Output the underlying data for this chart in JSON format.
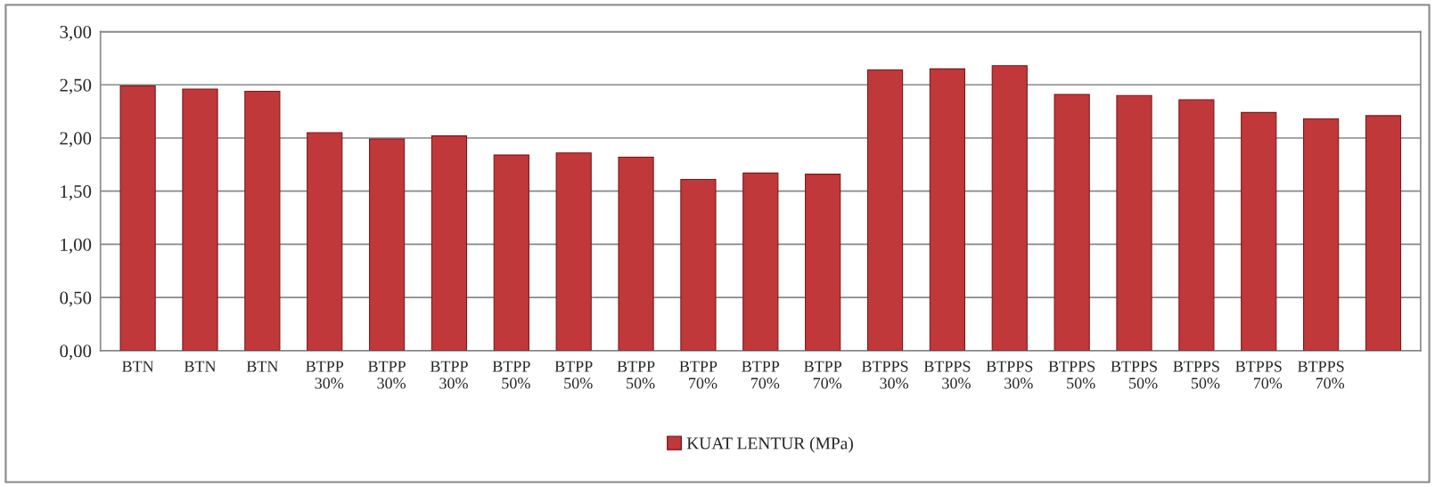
{
  "chart_data": {
    "type": "bar",
    "categories": [
      "BTN",
      "BTN",
      "BTN",
      "BTPP\n30%",
      "BTPP\n30%",
      "BTPP\n30%",
      "BTPP\n50%",
      "BTPP\n50%",
      "BTPP\n50%",
      "BTPP\n70%",
      "BTPP\n70%",
      "BTPP\n70%",
      "BTPPS\n30%",
      "BTPPS\n30%",
      "BTPPS\n30%",
      "BTPPS\n50%",
      "BTPPS\n50%",
      "BTPPS\n50%",
      "BTPPS\n70%",
      "BTPPS\n70%",
      null
    ],
    "series": [
      {
        "name": "KUAT LENTUR (MPa)",
        "color": "#c0383a",
        "values": [
          2.49,
          2.46,
          2.44,
          2.05,
          1.99,
          2.02,
          1.84,
          1.86,
          1.82,
          1.61,
          1.67,
          1.66,
          2.64,
          2.65,
          2.68,
          2.41,
          2.4,
          2.36,
          2.24,
          2.18,
          2.21
        ]
      }
    ],
    "ylim": [
      0,
      3
    ],
    "yticks": [
      {
        "value": 0,
        "label": "0,00"
      },
      {
        "value": 0.5,
        "label": "0,50"
      },
      {
        "value": 1,
        "label": "1,00"
      },
      {
        "value": 1.5,
        "label": "1,50"
      },
      {
        "value": 2,
        "label": "2,00"
      },
      {
        "value": 2.5,
        "label": "2,50"
      },
      {
        "value": 3,
        "label": "3,00"
      }
    ],
    "grid": "y",
    "legend": "bottom"
  }
}
